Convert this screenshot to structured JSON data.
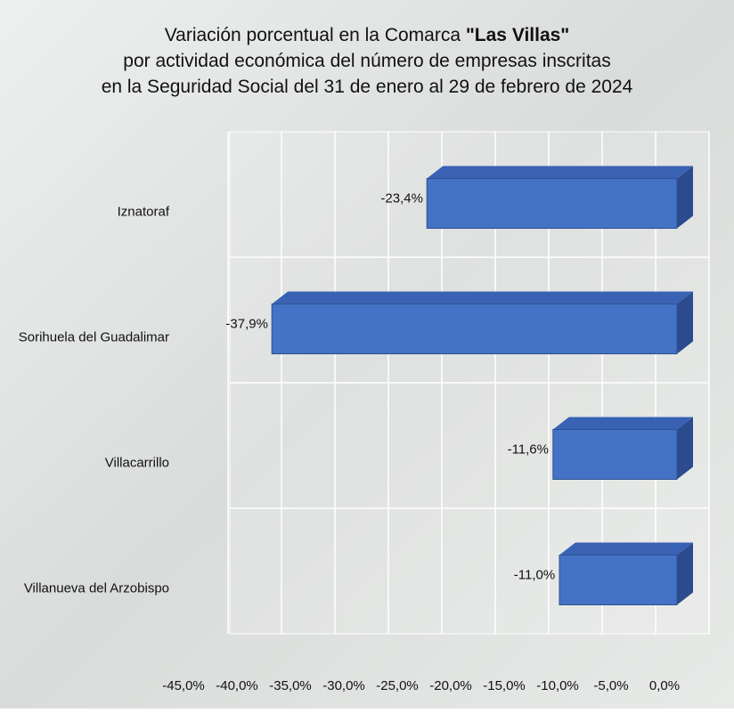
{
  "chart_data": {
    "type": "bar3d",
    "title": [
      [
        "Variación porcentual en la Comarca ",
        "\"Las Villas\""
      ],
      [
        "por actividad económica del número de empresas inscritas"
      ],
      [
        "en la Seguridad Social del 31 de enero al 29 de febrero de 2024"
      ]
    ],
    "title_bold_part": [
      0,
      1
    ],
    "categories": [
      "Iznatoraf",
      "Sorihuela del Guadalimar",
      "Villacarrillo",
      "Villanueva del Arzobispo"
    ],
    "values": [
      -23.4,
      -37.9,
      -11.6,
      -11.0
    ],
    "value_labels": [
      "-23,4%",
      "-37,9%",
      "-11,6%",
      "-11,0%"
    ],
    "color": "#4472c4",
    "xlim": [
      -45,
      0
    ],
    "xticks": [
      {
        "value": -45,
        "label": "-45,0%"
      },
      {
        "value": -40,
        "label": "-40,0%"
      },
      {
        "value": -35,
        "label": "-35,0%"
      },
      {
        "value": -30,
        "label": "-30,0%"
      },
      {
        "value": -25,
        "label": "-25,0%"
      },
      {
        "value": -20,
        "label": "-20,0%"
      },
      {
        "value": -15,
        "label": "-15,0%"
      },
      {
        "value": -10,
        "label": "-10,0%"
      },
      {
        "value": -5,
        "label": "-5,0%"
      },
      {
        "value": 0,
        "label": "0,0%"
      }
    ],
    "grid": true
  }
}
